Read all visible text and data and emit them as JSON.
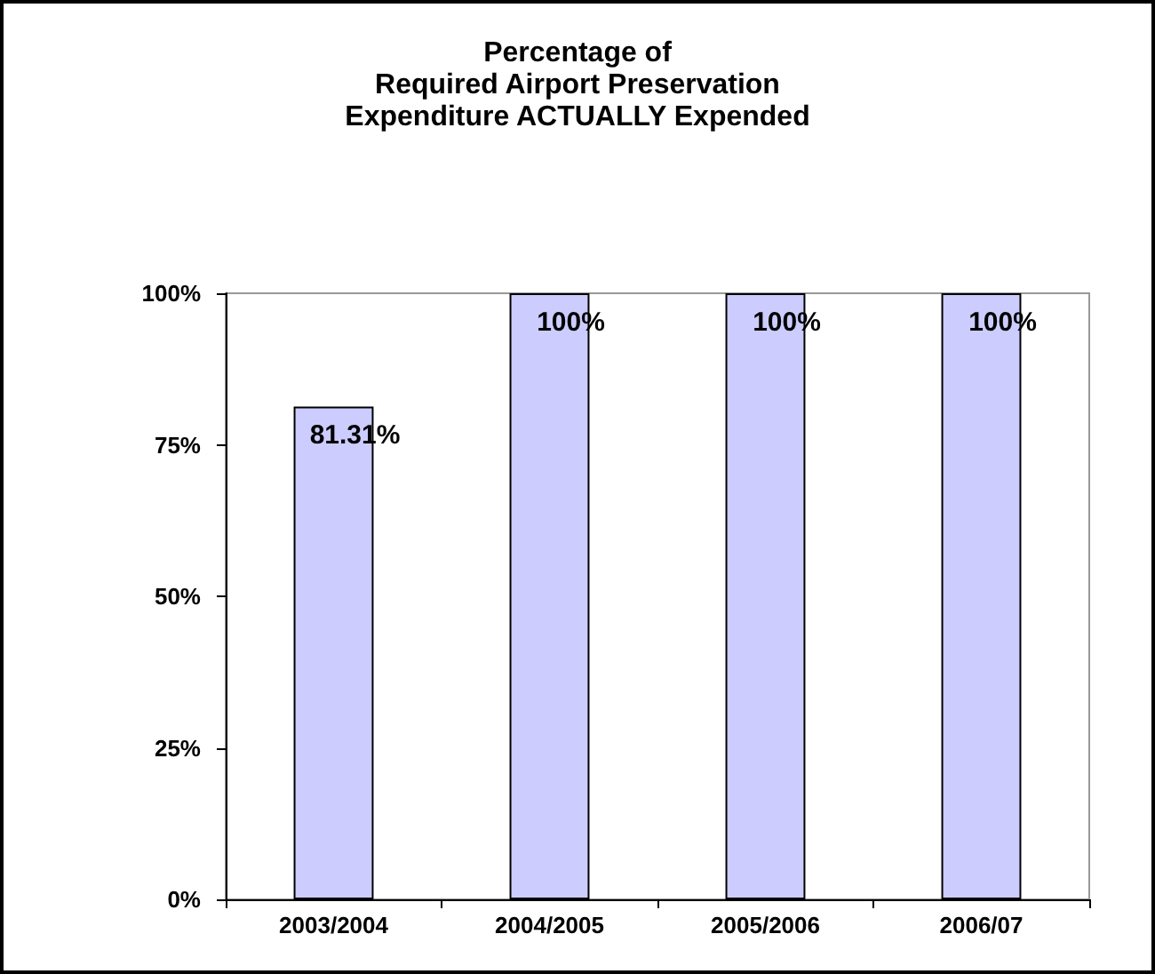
{
  "chart_data": {
    "type": "bar",
    "title": "Percentage of\nRequired Airport Preservation\nExpenditure ACTUALLY Expended",
    "categories": [
      "2003/2004",
      "2004/2005",
      "2005/2006",
      "2006/07"
    ],
    "values": [
      81.31,
      100,
      100,
      100
    ],
    "value_labels": [
      "81.31%",
      "100%",
      "100%",
      "100%"
    ],
    "color": "#ccccff",
    "ylim": [
      0,
      100
    ],
    "yticks": [
      {
        "value": 0,
        "label": "0%"
      },
      {
        "value": 25,
        "label": "25%"
      },
      {
        "value": 50,
        "label": "50%"
      },
      {
        "value": 75,
        "label": "75%"
      },
      {
        "value": 100,
        "label": "100%"
      }
    ],
    "grid": false
  }
}
